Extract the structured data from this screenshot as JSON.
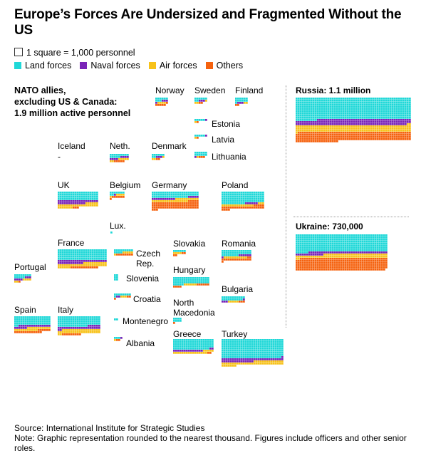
{
  "title": "Europe’s Forces Are Undersized and Fragmented Without the US",
  "scale_note": "1 square = 1,000 personnel",
  "legend": [
    {
      "label": "Land forces",
      "color": "#1fd8d8"
    },
    {
      "label": "Naval forces",
      "color": "#7a24b8"
    },
    {
      "label": "Air forces",
      "color": "#f7c21a"
    },
    {
      "label": "Others",
      "color": "#f5620f"
    }
  ],
  "nato_label": "NATO allies,\nexcluding US & Canada:\n1.9 million active personnel",
  "colors": {
    "land": "#1fd8d8",
    "naval": "#7a24b8",
    "air": "#f7c21a",
    "others": "#f5620f"
  },
  "chart_data": {
    "type": "waffle",
    "unit": "1 square = 1,000 personnel",
    "countries": [
      {
        "name": "Norway",
        "cols": 6,
        "land": 9,
        "naval": 4,
        "air": 4,
        "others": 6
      },
      {
        "name": "Sweden",
        "cols": 6,
        "land": 8,
        "naval": 3,
        "air": 3,
        "others": 2
      },
      {
        "name": "Finland",
        "cols": 6,
        "land": 13,
        "naval": 3,
        "air": 2,
        "others": 2
      },
      {
        "name": "Estonia",
        "cols": 6,
        "land": 5,
        "naval": 1,
        "air": 1,
        "others": 1
      },
      {
        "name": "Latvia",
        "cols": 6,
        "land": 5,
        "naval": 1,
        "air": 1,
        "others": 1
      },
      {
        "name": "Lithuania",
        "cols": 6,
        "land": 12,
        "naval": 1,
        "air": 1,
        "others": 3
      },
      {
        "name": "Iceland",
        "cols": 6,
        "land": 0,
        "naval": 0,
        "air": 0,
        "others": 0,
        "value_label": "-"
      },
      {
        "name": "Neth.",
        "cols": 9,
        "land": 14,
        "naval": 8,
        "air": 7,
        "others": 5
      },
      {
        "name": "Denmark",
        "cols": 6,
        "land": 8,
        "naval": 3,
        "air": 3,
        "others": 2
      },
      {
        "name": "UK",
        "cols": 19,
        "land": 76,
        "naval": 32,
        "air": 32,
        "others": 3
      },
      {
        "name": "Belgium",
        "cols": 7,
        "land": 9,
        "naval": 1,
        "air": 5,
        "others": 7
      },
      {
        "name": "Germany",
        "cols": 22,
        "land": 61,
        "naval": 16,
        "air": 28,
        "others": 74
      },
      {
        "name": "Poland",
        "cols": 20,
        "land": 111,
        "naval": 6,
        "air": 18,
        "others": 29
      },
      {
        "name": "Lux.",
        "cols": 1,
        "land": 1,
        "naval": 0,
        "air": 0,
        "others": 0
      },
      {
        "name": "France",
        "cols": 23,
        "land": 115,
        "naval": 35,
        "air": 40,
        "others": 13
      },
      {
        "name": "Czech Rep.",
        "cols": 9,
        "land": 13,
        "naval": 0,
        "air": 6,
        "others": 8
      },
      {
        "name": "Slovakia",
        "cols": 6,
        "land": 6,
        "naval": 0,
        "air": 4,
        "others": 4
      },
      {
        "name": "Romania",
        "cols": 14,
        "land": 36,
        "naval": 7,
        "air": 11,
        "others": 17
      },
      {
        "name": "Portugal",
        "cols": 8,
        "land": 13,
        "naval": 7,
        "air": 6,
        "others": 1
      },
      {
        "name": "Slovenia",
        "cols": 2,
        "land": 6,
        "naval": 0,
        "air": 0,
        "others": 0
      },
      {
        "name": "Hungary",
        "cols": 17,
        "land": 56,
        "naval": 0,
        "air": 6,
        "others": 10
      },
      {
        "name": "Croatia",
        "cols": 8,
        "land": 9,
        "naval": 2,
        "air": 3,
        "others": 3
      },
      {
        "name": "Bulgaria",
        "cols": 11,
        "land": 21,
        "naval": 4,
        "air": 5,
        "others": 3
      },
      {
        "name": "Montenegro",
        "cols": 2,
        "land": 2,
        "naval": 0,
        "air": 0,
        "others": 0
      },
      {
        "name": "Spain",
        "cols": 17,
        "land": 70,
        "naval": 21,
        "air": 22,
        "others": 19
      },
      {
        "name": "Italy",
        "cols": 20,
        "land": 94,
        "naval": 28,
        "air": 40,
        "others": 9
      },
      {
        "name": "North Macedonia",
        "cols": 4,
        "land": 8,
        "naval": 0,
        "air": 0,
        "others": 1
      },
      {
        "name": "Albania",
        "cols": 4,
        "land": 3,
        "naval": 1,
        "air": 1,
        "others": 2
      },
      {
        "name": "Greece",
        "cols": 19,
        "land": 93,
        "naval": 16,
        "air": 21,
        "others": 2
      },
      {
        "name": "Turkey",
        "cols": 29,
        "land": 260,
        "naval": 45,
        "air": 50,
        "others": 0
      },
      {
        "name": "Russia",
        "label": "Russia: 1.1 million",
        "cols": 54,
        "land": 550,
        "naval": 150,
        "air": 165,
        "others": 235
      },
      {
        "name": "Ukraine",
        "label": "Ukraine: 730,000",
        "cols": 43,
        "land": 350,
        "naval": 50,
        "air": 75,
        "others": 255
      }
    ]
  },
  "source": "Source: International Institute for Strategic Studies",
  "note": "Note: Graphic representation rounded to the nearest thousand. Figures include officers and other senior roles."
}
